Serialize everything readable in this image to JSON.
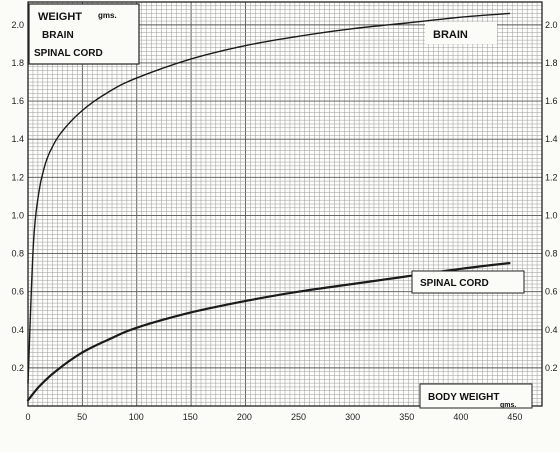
{
  "legend": {
    "line1": "WEIGHT",
    "unit": "gms.",
    "line2": "BRAIN",
    "line3": "SPINAL CORD"
  },
  "chart_data": {
    "type": "line",
    "x_ticks": [
      "0",
      "50",
      "100",
      "150",
      "200",
      "250",
      "300",
      "350",
      "400",
      "450"
    ],
    "y_ticks": [
      "0.2",
      "0.4",
      "0.6",
      "0.8",
      "1.0",
      "1.2",
      "1.4",
      "1.6",
      "1.8",
      "2.0"
    ],
    "xlim": [
      0,
      475
    ],
    "ylim": [
      0,
      2.12
    ],
    "grid": true,
    "xlabel": "BODY WEIGHT",
    "xlabel_unit": "gms.",
    "series": [
      {
        "name": "BRAIN",
        "x": [
          0,
          5,
          10,
          15,
          20,
          30,
          50,
          75,
          100,
          150,
          200,
          250,
          300,
          350,
          400,
          445
        ],
        "y": [
          0.12,
          0.85,
          1.12,
          1.25,
          1.33,
          1.43,
          1.55,
          1.65,
          1.72,
          1.82,
          1.89,
          1.94,
          1.98,
          2.01,
          2.04,
          2.06
        ]
      },
      {
        "name": "SPINAL CORD",
        "x": [
          0,
          10,
          25,
          50,
          75,
          100,
          150,
          200,
          250,
          300,
          350,
          400,
          445
        ],
        "y": [
          0.03,
          0.1,
          0.18,
          0.28,
          0.35,
          0.41,
          0.49,
          0.55,
          0.6,
          0.64,
          0.68,
          0.72,
          0.75
        ]
      }
    ]
  }
}
